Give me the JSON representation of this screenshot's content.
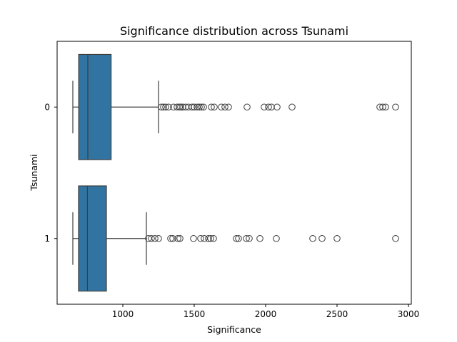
{
  "chart_data": {
    "type": "boxplot",
    "orientation": "horizontal",
    "title": "Significance distribution across Tsunami",
    "xlabel": "Significance",
    "ylabel": "Tsunami",
    "xlim": [
      540,
      3020
    ],
    "xticks": [
      1000,
      1500,
      2000,
      2500,
      3000
    ],
    "categories": [
      "0",
      "1"
    ],
    "box_color": "#3274a1",
    "line_color": "#3d3d3d",
    "series": [
      {
        "category": "0",
        "whisker_low": 650,
        "q1": 691,
        "median": 755,
        "q3": 918,
        "whisker_high": 1250,
        "outliers": [
          1270,
          1285,
          1300,
          1320,
          1355,
          1380,
          1395,
          1405,
          1420,
          1440,
          1460,
          1485,
          1500,
          1520,
          1535,
          1550,
          1565,
          1620,
          1640,
          1690,
          1715,
          1740,
          1870,
          1990,
          2020,
          2040,
          2080,
          2185,
          2800,
          2820,
          2840,
          2910
        ]
      },
      {
        "category": "1",
        "whisker_low": 650,
        "q1": 690,
        "median": 752,
        "q3": 885,
        "whisker_high": 1165,
        "outliers": [
          1180,
          1200,
          1225,
          1250,
          1335,
          1350,
          1385,
          1400,
          1495,
          1545,
          1570,
          1600,
          1615,
          1635,
          1795,
          1810,
          1865,
          1885,
          1960,
          2075,
          2330,
          2395,
          2500,
          2910
        ]
      }
    ]
  }
}
